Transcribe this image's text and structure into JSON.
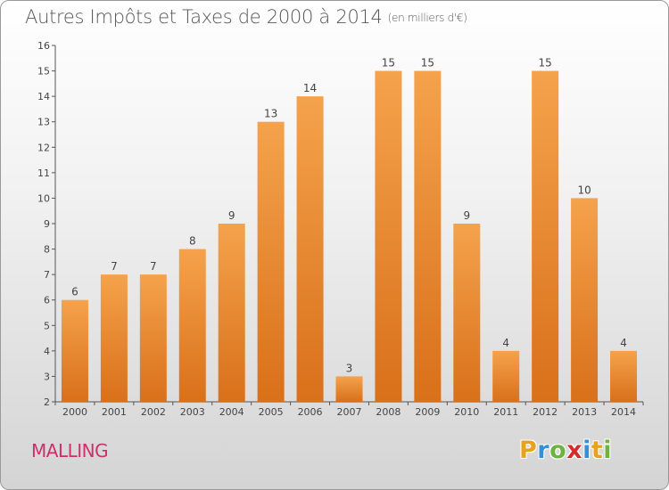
{
  "header": {
    "title": "Autres Impôts et Taxes de 2000 à 2014",
    "unit": "(en milliers d'€)"
  },
  "commune": "MALLING",
  "logo": {
    "letters": [
      "P",
      "r",
      "o",
      "x",
      "i",
      "t",
      "i"
    ],
    "colors": [
      "#e8a21c",
      "#3a8fd4",
      "#6cb33f",
      "#d62b2b",
      "#3a8fd4",
      "#e8a21c",
      "#6cb33f"
    ]
  },
  "chart_data": {
    "type": "bar",
    "title": "Autres Impôts et Taxes de 2000 à 2014",
    "subtitle": "(en milliers d'€)",
    "categories": [
      "2000",
      "2001",
      "2002",
      "2003",
      "2004",
      "2005",
      "2006",
      "2007",
      "2008",
      "2009",
      "2010",
      "2011",
      "2012",
      "2013",
      "2014"
    ],
    "values": [
      6,
      7,
      7,
      8,
      9,
      13,
      14,
      3,
      15,
      15,
      9,
      4,
      15,
      10,
      4
    ],
    "ylim": [
      2,
      16
    ],
    "yticks": [
      2,
      3,
      4,
      5,
      6,
      7,
      8,
      9,
      10,
      11,
      12,
      13,
      14,
      15,
      16
    ],
    "grid": false,
    "bar_color_top": "#f5a24c",
    "bar_color_bottom": "#d9701a"
  }
}
